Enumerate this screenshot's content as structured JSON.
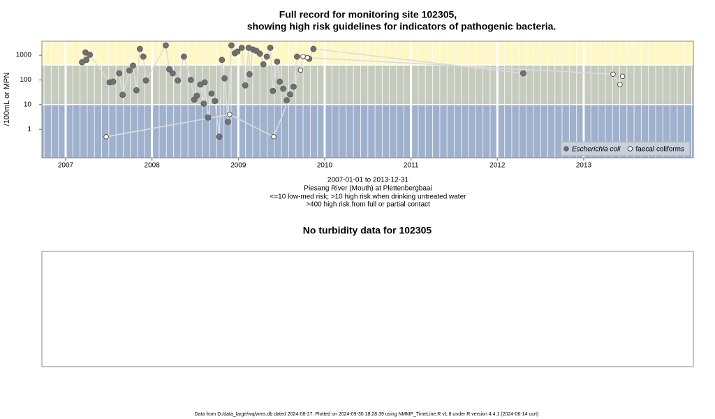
{
  "chart_data": {
    "type": "scatter",
    "title": "Full record for monitoring site 102305,",
    "subtitle": "showing high risk guidelines for indicators of pathogenic bacteria.",
    "y_label": "/100mL or MPN",
    "log_y": true,
    "xlim": [
      2006.725,
      2014.27
    ],
    "xticks": [
      2007,
      2008,
      2009,
      2010,
      2011,
      2012,
      2013
    ],
    "ylim": [
      0.07,
      3700
    ],
    "yticks": [
      1,
      10,
      100,
      1000
    ],
    "grid": true,
    "legend": "bottom-right",
    "bands": [
      {
        "max": 10,
        "color": "#9fb1cc"
      },
      {
        "min": 10,
        "max": 400,
        "color": "#c5ccbe"
      },
      {
        "min": 400,
        "color": "#fff7c6"
      }
    ],
    "line_color": "#dcdcdc",
    "series": [
      {
        "name": "Escherichia coli",
        "color": "#707070",
        "marker": "filled",
        "x": [
          2007.19,
          2007.23,
          2007.24,
          2007.28,
          2007.51,
          2007.55,
          2007.62,
          2007.66,
          2007.74,
          2007.78,
          2007.82,
          2007.86,
          2007.9,
          2007.93,
          2008.16,
          2008.2,
          2008.24,
          2008.3,
          2008.37,
          2008.45,
          2008.49,
          2008.52,
          2008.56,
          2008.6,
          2008.61,
          2008.65,
          2008.69,
          2008.73,
          2008.78,
          2008.81,
          2008.84,
          2008.88,
          2008.92,
          2008.96,
          2008.99,
          2009.04,
          2009.08,
          2009.12,
          2009.13,
          2009.17,
          2009.21,
          2009.25,
          2009.29,
          2009.33,
          2009.37,
          2009.4,
          2009.45,
          2009.48,
          2009.52,
          2009.56,
          2009.6,
          2009.64,
          2009.68,
          2009.82,
          2009.87,
          2012.3
        ],
        "values": [
          520,
          1300,
          650,
          1050,
          80,
          85,
          185,
          25,
          240,
          380,
          38,
          1800,
          880,
          95,
          2500,
          270,
          185,
          95,
          880,
          100,
          16,
          23,
          65,
          11,
          80,
          3,
          28,
          14,
          0.5,
          650,
          115,
          2,
          2500,
          1200,
          1400,
          2000,
          60,
          2000,
          170,
          1700,
          1500,
          1150,
          430,
          880,
          2000,
          36,
          550,
          85,
          44,
          15,
          26,
          53,
          880,
          720,
          1800,
          185
        ]
      },
      {
        "name": "faecal coliforms",
        "color": "#333333",
        "marker": "open",
        "x": [
          2007.47,
          2008.9,
          2009.41,
          2009.72,
          2009.75,
          2009.8,
          2013.34,
          2013.42,
          2013.45
        ],
        "values": [
          0.5,
          4,
          0.5,
          250,
          900,
          800,
          170,
          65,
          140
        ]
      }
    ]
  },
  "caption": [
    "2007-01-01 to 2013-12-31",
    "Piesang River (Mouth) at Plettenbergbaai",
    "<=10 low-med risk; >10 high risk when drinking untreated water",
    ">400 high risk from full or partial contact"
  ],
  "turbidity_panel": {
    "title": "No turbidity data for 102305"
  },
  "footer": "Data from D:/data_large/wq/wms.db dated 2024-08-27. Plotted on 2024-09-30 18:28:39 using NMMP_TimeLine.R v1.8 under R version 4.4.1 (2024-06-14 ucrt)"
}
